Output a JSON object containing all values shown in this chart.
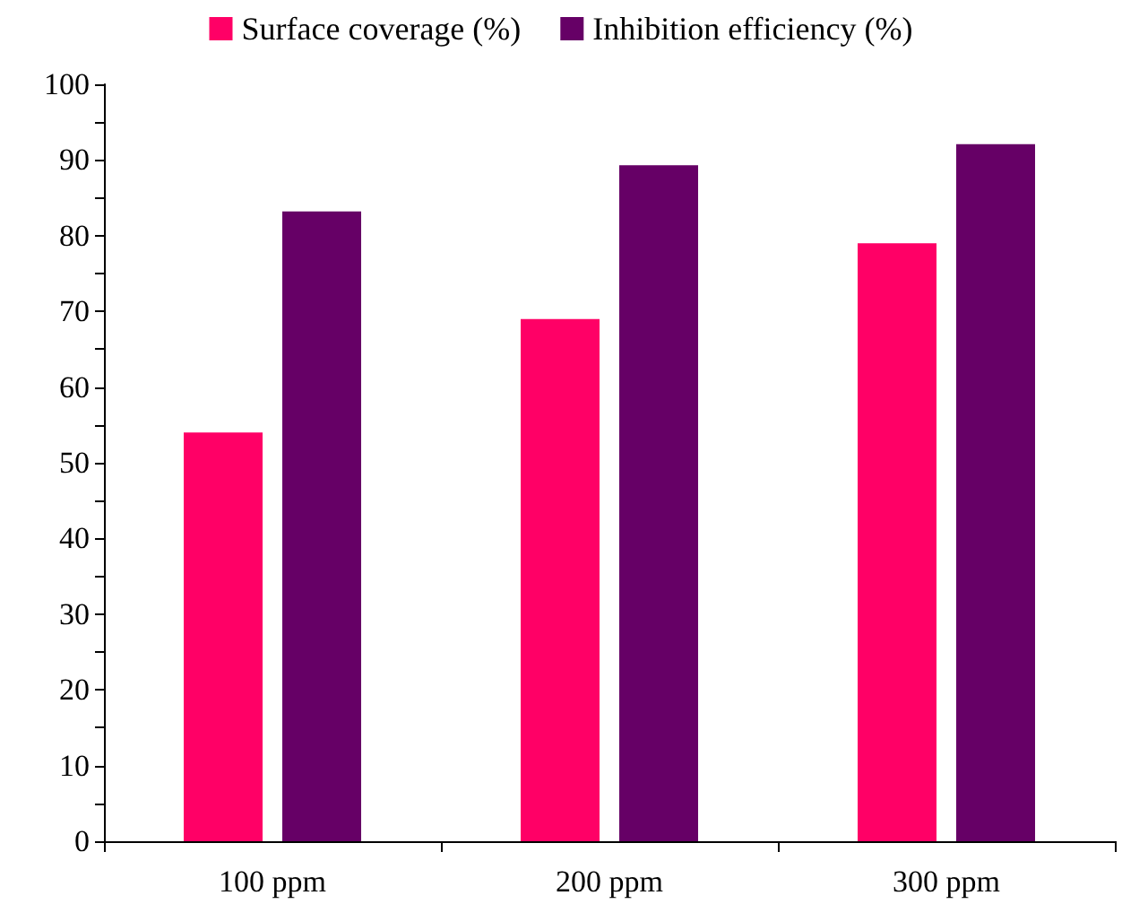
{
  "chart_data": {
    "type": "bar",
    "categories": [
      "100 ppm",
      "200 ppm",
      "300 ppm"
    ],
    "series": [
      {
        "name": "Surface coverage (%)",
        "color": "#ff0066",
        "values": [
          54,
          69,
          79
        ]
      },
      {
        "name": "Inhibition efficiency (%)",
        "color": "#660066",
        "values": [
          83.2,
          89.3,
          92.1
        ]
      }
    ],
    "ylim": [
      0,
      100
    ],
    "yticks": [
      0,
      {
        "value": 5,
        "label": null
      },
      10,
      {
        "value": 15,
        "label": null
      },
      20,
      {
        "value": 25,
        "label": null
      },
      30,
      {
        "value": 35,
        "label": null
      },
      40,
      {
        "value": 45,
        "label": null
      },
      50,
      {
        "value": 55,
        "label": null
      },
      60,
      {
        "value": 65,
        "label": null
      },
      70,
      {
        "value": 75,
        "label": null
      },
      80,
      {
        "value": 85,
        "label": null
      },
      90,
      {
        "value": 95,
        "label": null
      },
      100
    ],
    "grid": false,
    "legend": "top"
  }
}
